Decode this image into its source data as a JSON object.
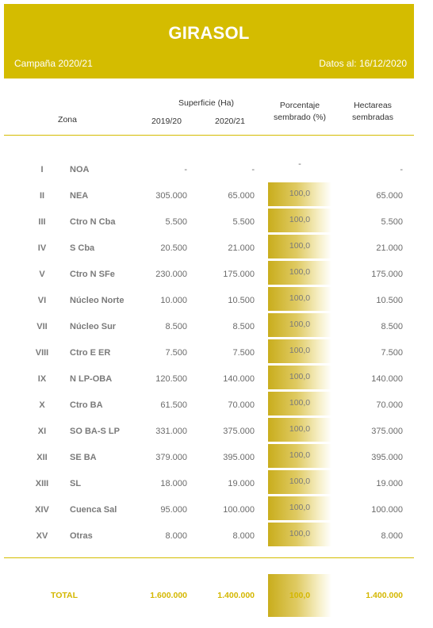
{
  "header": {
    "title": "GIRASOL",
    "campaign": "Campaña 2020/21",
    "date": "Datos al: 16/12/2020"
  },
  "columns": {
    "zone": "Zona",
    "surface_group": "Superficie (Ha)",
    "year1": "2019/20",
    "year2": "2020/21",
    "pct_line1": "Porcentaje",
    "pct_line2": "sembrado (%)",
    "ha_line1": "Hectareas",
    "ha_line2": "sembradas"
  },
  "rows": [
    {
      "num": "I",
      "zone": "NOA",
      "s1920": "-",
      "s2021": "-",
      "pct": "-",
      "ha": "-"
    },
    {
      "num": "II",
      "zone": "NEA",
      "s1920": "305.000",
      "s2021": "65.000",
      "pct": "100,0",
      "ha": "65.000"
    },
    {
      "num": "III",
      "zone": "Ctro N Cba",
      "s1920": "5.500",
      "s2021": "5.500",
      "pct": "100,0",
      "ha": "5.500"
    },
    {
      "num": "IV",
      "zone": "S Cba",
      "s1920": "20.500",
      "s2021": "21.000",
      "pct": "100,0",
      "ha": "21.000"
    },
    {
      "num": "V",
      "zone": "Ctro N SFe",
      "s1920": "230.000",
      "s2021": "175.000",
      "pct": "100,0",
      "ha": "175.000"
    },
    {
      "num": "VI",
      "zone": "Núcleo Norte",
      "s1920": "10.000",
      "s2021": "10.500",
      "pct": "100,0",
      "ha": "10.500"
    },
    {
      "num": "VII",
      "zone": "Núcleo Sur",
      "s1920": "8.500",
      "s2021": "8.500",
      "pct": "100,0",
      "ha": "8.500"
    },
    {
      "num": "VIII",
      "zone": "Ctro E ER",
      "s1920": "7.500",
      "s2021": "7.500",
      "pct": "100,0",
      "ha": "7.500"
    },
    {
      "num": "IX",
      "zone": "N LP-OBA",
      "s1920": "120.500",
      "s2021": "140.000",
      "pct": "100,0",
      "ha": "140.000"
    },
    {
      "num": "X",
      "zone": "Ctro BA",
      "s1920": "61.500",
      "s2021": "70.000",
      "pct": "100,0",
      "ha": "70.000"
    },
    {
      "num": "XI",
      "zone": "SO BA-S LP",
      "s1920": "331.000",
      "s2021": "375.000",
      "pct": "100,0",
      "ha": "375.000"
    },
    {
      "num": "XII",
      "zone": "SE BA",
      "s1920": "379.000",
      "s2021": "395.000",
      "pct": "100,0",
      "ha": "395.000"
    },
    {
      "num": "XIII",
      "zone": "SL",
      "s1920": "18.000",
      "s2021": "19.000",
      "pct": "100,0",
      "ha": "19.000"
    },
    {
      "num": "XIV",
      "zone": "Cuenca Sal",
      "s1920": "95.000",
      "s2021": "100.000",
      "pct": "100,0",
      "ha": "100.000"
    },
    {
      "num": "XV",
      "zone": "Otras",
      "s1920": "8.000",
      "s2021": "8.000",
      "pct": "100,0",
      "ha": "8.000"
    }
  ],
  "total": {
    "label": "TOTAL",
    "s1920": "1.600.000",
    "s2021": "1.400.000",
    "pct": "100,0",
    "ha": "1.400.000"
  },
  "colors": {
    "accent": "#d4bc00",
    "total_text": "#d4b700"
  }
}
